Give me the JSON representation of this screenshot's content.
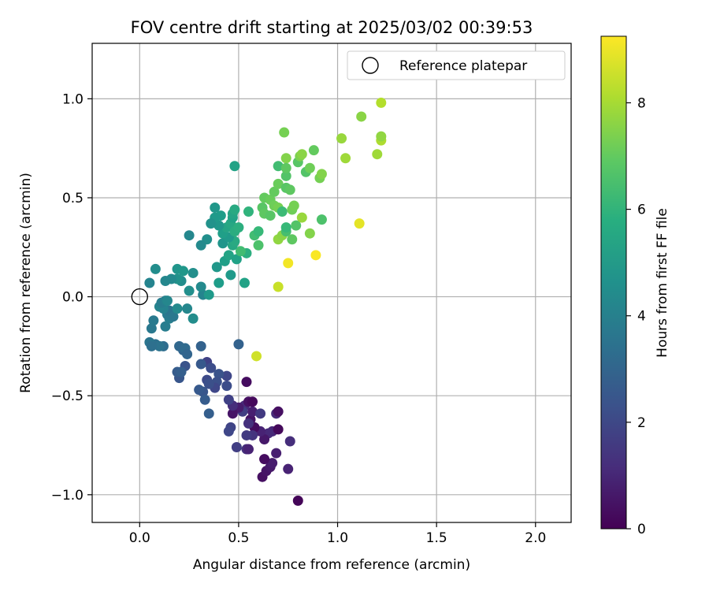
{
  "chart_data": {
    "type": "scatter",
    "title": "FOV centre drift starting at 2025/03/02 00:39:53",
    "xlabel": "Angular distance from reference (arcmin)",
    "ylabel": "Rotation from reference (arcmin)",
    "xlim": [
      -0.24,
      2.18
    ],
    "ylim": [
      -1.14,
      1.28
    ],
    "xticks": [
      0.0,
      0.5,
      1.0,
      1.5,
      2.0
    ],
    "xtick_labels": [
      "0.0",
      "0.5",
      "1.0",
      "1.5",
      "2.0"
    ],
    "yticks": [
      -1.0,
      -0.5,
      0.0,
      0.5,
      1.0
    ],
    "ytick_labels": [
      "−1.0",
      "−0.5",
      "0.0",
      "0.5",
      "1.0"
    ],
    "grid": true,
    "legend": {
      "position": "top-right",
      "entries": [
        "Reference platepar"
      ]
    },
    "reference_point": {
      "x": 0.0,
      "y": 0.0
    },
    "colorbar": {
      "label": "Hours from first FF file",
      "range": [
        0,
        9.25
      ],
      "ticks": [
        0,
        2,
        4,
        6,
        8
      ],
      "tick_labels": [
        "0",
        "2",
        "4",
        "6",
        "8"
      ],
      "colormap": "viridis"
    },
    "points": [
      [
        0.8,
        -1.03,
        0.1
      ],
      [
        0.62,
        -0.91,
        0.4
      ],
      [
        0.64,
        -0.88,
        0.5
      ],
      [
        0.66,
        -0.86,
        0.6
      ],
      [
        0.67,
        -0.84,
        0.7
      ],
      [
        0.63,
        -0.82,
        0.3
      ],
      [
        0.75,
        -0.87,
        0.9
      ],
      [
        0.76,
        -0.73,
        1.2
      ],
      [
        0.69,
        -0.79,
        0.8
      ],
      [
        0.67,
        -0.68,
        1.0
      ],
      [
        0.65,
        -0.69,
        1.1
      ],
      [
        0.7,
        -0.67,
        0.2
      ],
      [
        0.63,
        -0.72,
        0.6
      ],
      [
        0.61,
        -0.68,
        0.9
      ],
      [
        0.58,
        -0.66,
        0.3
      ],
      [
        0.57,
        -0.7,
        1.4
      ],
      [
        0.56,
        -0.62,
        0.5
      ],
      [
        0.55,
        -0.64,
        1.3
      ],
      [
        0.54,
        -0.7,
        1.6
      ],
      [
        0.57,
        -0.58,
        0.8
      ],
      [
        0.53,
        -0.55,
        1.1
      ],
      [
        0.52,
        -0.58,
        1.7
      ],
      [
        0.55,
        -0.53,
        0.4
      ],
      [
        0.57,
        -0.53,
        0.2
      ],
      [
        0.5,
        -0.56,
        0.7
      ],
      [
        0.47,
        -0.59,
        0.5
      ],
      [
        0.47,
        -0.55,
        1.2
      ],
      [
        0.45,
        -0.52,
        1.8
      ],
      [
        0.46,
        -0.66,
        1.9
      ],
      [
        0.45,
        -0.68,
        2.0
      ],
      [
        0.49,
        -0.76,
        1.7
      ],
      [
        0.54,
        -0.77,
        1.3
      ],
      [
        0.55,
        -0.77,
        0.9
      ],
      [
        0.69,
        -0.59,
        1.1
      ],
      [
        0.7,
        -0.58,
        0.4
      ],
      [
        0.61,
        -0.59,
        1.6
      ],
      [
        0.54,
        -0.43,
        0.3
      ],
      [
        0.44,
        -0.45,
        2.2
      ],
      [
        0.44,
        -0.4,
        2.0
      ],
      [
        0.4,
        -0.39,
        2.4
      ],
      [
        0.39,
        -0.43,
        2.3
      ],
      [
        0.38,
        -0.46,
        2.0
      ],
      [
        0.34,
        -0.33,
        1.8
      ],
      [
        0.34,
        -0.42,
        2.1
      ],
      [
        0.35,
        -0.44,
        2.3
      ],
      [
        0.31,
        -0.34,
        2.6
      ],
      [
        0.31,
        -0.25,
        2.9
      ],
      [
        0.36,
        -0.36,
        2.2
      ],
      [
        0.32,
        -0.48,
        2.5
      ],
      [
        0.33,
        -0.52,
        2.7
      ],
      [
        0.35,
        -0.59,
        2.8
      ],
      [
        0.3,
        -0.47,
        2.6
      ],
      [
        0.23,
        -0.35,
        2.4
      ],
      [
        0.2,
        -0.41,
        2.5
      ],
      [
        0.19,
        -0.38,
        2.7
      ],
      [
        0.21,
        -0.38,
        2.8
      ],
      [
        0.22,
        -0.27,
        3.0
      ],
      [
        0.2,
        -0.25,
        3.1
      ],
      [
        0.23,
        -0.26,
        3.2
      ],
      [
        0.24,
        -0.29,
        3.0
      ],
      [
        0.5,
        -0.24,
        2.9
      ],
      [
        0.12,
        -0.25,
        3.3
      ],
      [
        0.08,
        -0.24,
        3.4
      ],
      [
        0.1,
        -0.25,
        3.5
      ],
      [
        0.05,
        -0.23,
        3.6
      ],
      [
        0.06,
        -0.25,
        3.4
      ],
      [
        0.06,
        -0.16,
        3.7
      ],
      [
        0.07,
        -0.12,
        3.8
      ],
      [
        0.13,
        -0.15,
        3.9
      ],
      [
        0.15,
        -0.11,
        4.0
      ],
      [
        0.14,
        -0.09,
        3.8
      ],
      [
        0.15,
        -0.07,
        3.6
      ],
      [
        0.17,
        -0.1,
        3.7
      ],
      [
        0.12,
        -0.06,
        4.1
      ],
      [
        0.1,
        -0.05,
        4.2
      ],
      [
        0.11,
        -0.03,
        3.9
      ],
      [
        0.13,
        -0.02,
        4.0
      ],
      [
        0.14,
        -0.02,
        4.3
      ],
      [
        0.19,
        -0.06,
        4.4
      ],
      [
        0.24,
        -0.06,
        4.3
      ],
      [
        0.27,
        -0.11,
        4.5
      ],
      [
        0.32,
        0.01,
        4.2
      ],
      [
        0.31,
        0.05,
        4.4
      ],
      [
        0.25,
        0.03,
        4.6
      ],
      [
        0.21,
        0.08,
        4.5
      ],
      [
        0.19,
        0.09,
        4.7
      ],
      [
        0.16,
        0.09,
        4.4
      ],
      [
        0.13,
        0.08,
        4.3
      ],
      [
        0.05,
        0.07,
        4.2
      ],
      [
        0.08,
        0.14,
        4.5
      ],
      [
        0.19,
        0.14,
        4.8
      ],
      [
        0.22,
        0.13,
        4.9
      ],
      [
        0.27,
        0.12,
        4.6
      ],
      [
        0.35,
        0.01,
        5.0
      ],
      [
        0.4,
        0.07,
        5.1
      ],
      [
        0.39,
        0.15,
        4.9
      ],
      [
        0.46,
        0.11,
        5.0
      ],
      [
        0.53,
        0.07,
        5.3
      ],
      [
        0.43,
        0.18,
        5.2
      ],
      [
        0.45,
        0.21,
        5.4
      ],
      [
        0.49,
        0.19,
        5.3
      ],
      [
        0.54,
        0.22,
        5.8
      ],
      [
        0.51,
        0.23,
        6.4
      ],
      [
        0.47,
        0.26,
        5.5
      ],
      [
        0.48,
        0.28,
        5.6
      ],
      [
        0.42,
        0.27,
        4.8
      ],
      [
        0.45,
        0.3,
        5.0
      ],
      [
        0.42,
        0.32,
        5.2
      ],
      [
        0.44,
        0.35,
        5.4
      ],
      [
        0.4,
        0.36,
        4.9
      ],
      [
        0.46,
        0.37,
        5.5
      ],
      [
        0.48,
        0.33,
        5.7
      ],
      [
        0.5,
        0.35,
        5.8
      ],
      [
        0.47,
        0.4,
        5.3
      ],
      [
        0.47,
        0.42,
        5.4
      ],
      [
        0.48,
        0.44,
        5.6
      ],
      [
        0.41,
        0.41,
        5.1
      ],
      [
        0.38,
        0.4,
        5.0
      ],
      [
        0.38,
        0.45,
        4.9
      ],
      [
        0.36,
        0.37,
        4.7
      ],
      [
        0.34,
        0.29,
        4.6
      ],
      [
        0.31,
        0.26,
        4.4
      ],
      [
        0.25,
        0.31,
        4.3
      ],
      [
        0.48,
        0.66,
        5.3
      ],
      [
        0.55,
        0.43,
        6.0
      ],
      [
        0.58,
        0.31,
        6.4
      ],
      [
        0.6,
        0.33,
        6.2
      ],
      [
        0.6,
        0.26,
        6.6
      ],
      [
        0.62,
        0.45,
        6.8
      ],
      [
        0.63,
        0.42,
        6.9
      ],
      [
        0.63,
        0.5,
        7.0
      ],
      [
        0.66,
        0.49,
        7.1
      ],
      [
        0.68,
        0.46,
        7.2
      ],
      [
        0.68,
        0.53,
        7.0
      ],
      [
        0.66,
        0.41,
        6.8
      ],
      [
        0.7,
        0.45,
        7.3
      ],
      [
        0.7,
        0.29,
        7.7
      ],
      [
        0.72,
        0.43,
        6.3
      ],
      [
        0.72,
        0.31,
        7.6
      ],
      [
        0.74,
        0.33,
        6.5
      ],
      [
        0.74,
        0.35,
        6.2
      ],
      [
        0.7,
        0.57,
        7.1
      ],
      [
        0.7,
        0.66,
        6.4
      ],
      [
        0.74,
        0.61,
        6.7
      ],
      [
        0.74,
        0.55,
        6.8
      ],
      [
        0.76,
        0.54,
        6.9
      ],
      [
        0.77,
        0.44,
        7.2
      ],
      [
        0.78,
        0.46,
        7.3
      ],
      [
        0.77,
        0.29,
        6.9
      ],
      [
        0.79,
        0.36,
        6.7
      ],
      [
        0.82,
        0.4,
        7.8
      ],
      [
        0.86,
        0.32,
        7.5
      ],
      [
        0.73,
        0.83,
        7.3
      ],
      [
        0.74,
        0.7,
        7.5
      ],
      [
        0.74,
        0.65,
        6.9
      ],
      [
        0.8,
        0.68,
        6.8
      ],
      [
        0.81,
        0.71,
        7.4
      ],
      [
        0.82,
        0.72,
        7.6
      ],
      [
        0.84,
        0.63,
        6.7
      ],
      [
        0.86,
        0.65,
        7.2
      ],
      [
        0.88,
        0.74,
        7.0
      ],
      [
        0.91,
        0.6,
        7.3
      ],
      [
        0.92,
        0.62,
        7.5
      ],
      [
        0.92,
        0.39,
        6.6
      ],
      [
        1.02,
        0.8,
        7.8
      ],
      [
        1.04,
        0.7,
        7.9
      ],
      [
        1.12,
        0.91,
        7.6
      ],
      [
        1.2,
        0.72,
        7.9
      ],
      [
        1.22,
        0.79,
        8.1
      ],
      [
        1.22,
        0.81,
        7.7
      ],
      [
        1.22,
        0.98,
        8.2
      ],
      [
        1.11,
        0.37,
        8.9
      ],
      [
        0.89,
        0.21,
        9.2
      ],
      [
        0.75,
        0.17,
        9.1
      ],
      [
        0.7,
        0.05,
        8.5
      ],
      [
        0.59,
        -0.3,
        8.6
      ]
    ]
  }
}
